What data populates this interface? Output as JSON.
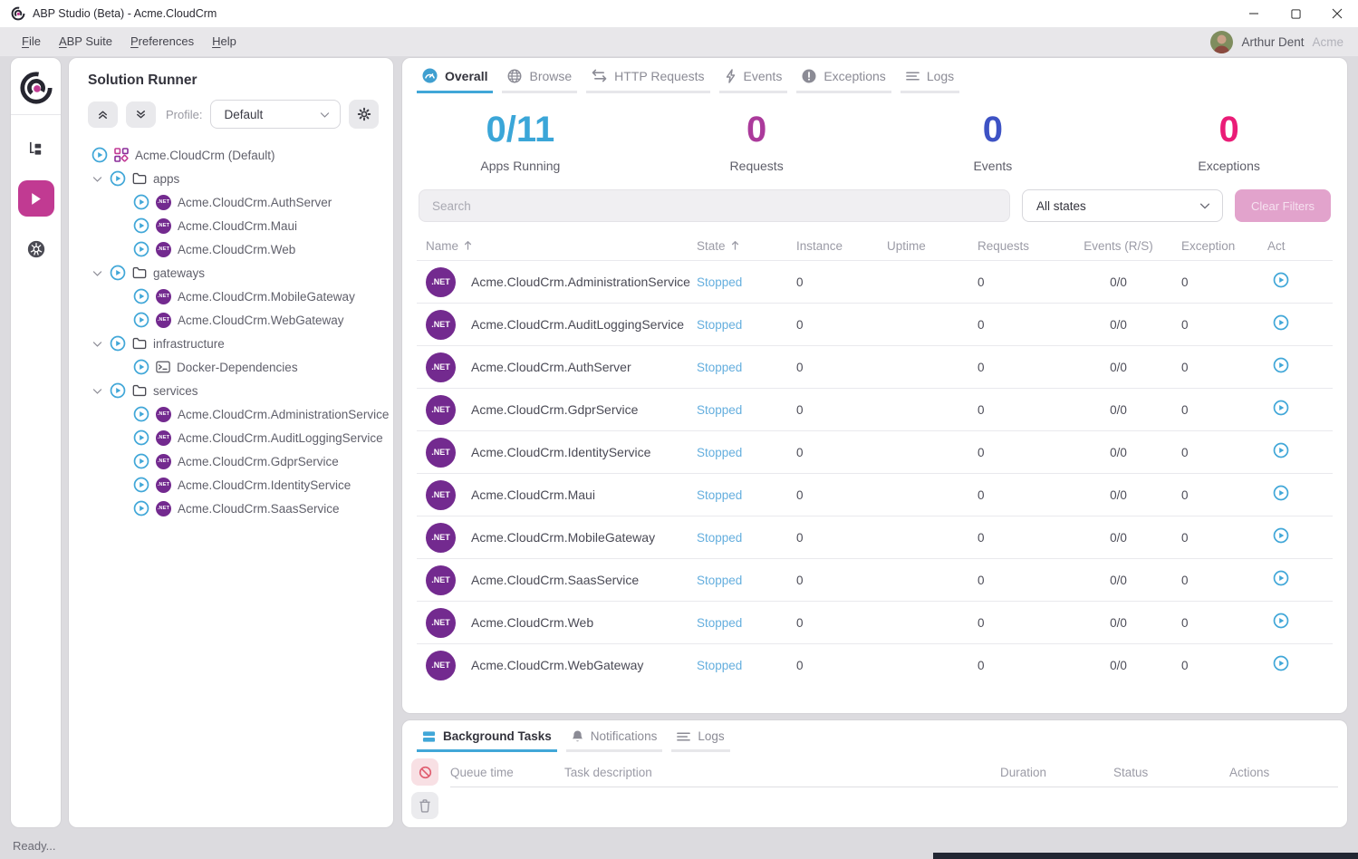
{
  "window": {
    "title": "ABP Studio (Beta) - Acme.CloudCrm"
  },
  "menu": {
    "items": [
      "File",
      "ABP Suite",
      "Preferences",
      "Help"
    ],
    "user_name": "Arthur Dent",
    "org_name": "Acme"
  },
  "rail": {
    "items": [
      {
        "icon": "solution-explorer-icon"
      },
      {
        "icon": "solution-runner-icon",
        "active": true
      },
      {
        "icon": "kubernetes-icon"
      }
    ]
  },
  "runner": {
    "title": "Solution Runner",
    "profile_label": "Profile:",
    "profile_value": "Default",
    "tree": [
      {
        "label": "Acme.CloudCrm (Default)",
        "icon": "grid",
        "level": 0
      },
      {
        "label": "apps",
        "icon": "folder",
        "level": 1
      },
      {
        "label": "Acme.CloudCrm.AuthServer",
        "icon": "dotnet",
        "level": 2
      },
      {
        "label": "Acme.CloudCrm.Maui",
        "icon": "dotnet",
        "level": 2
      },
      {
        "label": "Acme.CloudCrm.Web",
        "icon": "dotnet",
        "level": 2
      },
      {
        "label": "gateways",
        "icon": "folder",
        "level": 1
      },
      {
        "label": "Acme.CloudCrm.MobileGateway",
        "icon": "dotnet",
        "level": 2
      },
      {
        "label": "Acme.CloudCrm.WebGateway",
        "icon": "dotnet",
        "level": 2
      },
      {
        "label": "infrastructure",
        "icon": "folder",
        "level": 1
      },
      {
        "label": "Docker-Dependencies",
        "icon": "terminal",
        "level": 2
      },
      {
        "label": "services",
        "icon": "folder",
        "level": 1
      },
      {
        "label": "Acme.CloudCrm.AdministrationService",
        "icon": "dotnet",
        "level": 2
      },
      {
        "label": "Acme.CloudCrm.AuditLoggingService",
        "icon": "dotnet",
        "level": 2
      },
      {
        "label": "Acme.CloudCrm.GdprService",
        "icon": "dotnet",
        "level": 2
      },
      {
        "label": "Acme.CloudCrm.IdentityService",
        "icon": "dotnet",
        "level": 2
      },
      {
        "label": "Acme.CloudCrm.SaasService",
        "icon": "dotnet",
        "level": 2
      }
    ]
  },
  "main": {
    "tabs": [
      {
        "label": "Overall",
        "icon": "gauge",
        "active": true
      },
      {
        "label": "Browse",
        "icon": "globe",
        "active": false
      },
      {
        "label": "HTTP Requests",
        "icon": "swap",
        "active": false
      },
      {
        "label": "Events",
        "icon": "bolt",
        "active": false
      },
      {
        "label": "Exceptions",
        "icon": "exclaim",
        "active": false
      },
      {
        "label": "Logs",
        "icon": "lines",
        "active": false
      }
    ],
    "stats": [
      {
        "value": "0/11",
        "label": "Apps Running",
        "color": "#3ba6d8"
      },
      {
        "value": "0",
        "label": "Requests",
        "color": "#ab3a9b"
      },
      {
        "value": "0",
        "label": "Events",
        "color": "#3d52c4"
      },
      {
        "value": "0",
        "label": "Exceptions",
        "color": "#ea1c77"
      }
    ],
    "search_placeholder": "Search",
    "state_filter_value": "All states",
    "clear_filters_label": "Clear Filters",
    "table": {
      "headers": [
        {
          "label": "Name",
          "sorted": true
        },
        {
          "label": "State",
          "sorted": true
        },
        {
          "label": "Instance"
        },
        {
          "label": "Uptime"
        },
        {
          "label": "Requests"
        },
        {
          "label": "Events (R/S)"
        },
        {
          "label": "Exceptions"
        },
        {
          "label": "Act"
        }
      ],
      "rows": [
        {
          "name": "Acme.CloudCrm.AdministrationService",
          "state": "Stopped",
          "instance": "0",
          "uptime": "",
          "requests": "0",
          "events": "0/0",
          "exceptions": "0"
        },
        {
          "name": "Acme.CloudCrm.AuditLoggingService",
          "state": "Stopped",
          "instance": "0",
          "uptime": "",
          "requests": "0",
          "events": "0/0",
          "exceptions": "0"
        },
        {
          "name": "Acme.CloudCrm.AuthServer",
          "state": "Stopped",
          "instance": "0",
          "uptime": "",
          "requests": "0",
          "events": "0/0",
          "exceptions": "0"
        },
        {
          "name": "Acme.CloudCrm.GdprService",
          "state": "Stopped",
          "instance": "0",
          "uptime": "",
          "requests": "0",
          "events": "0/0",
          "exceptions": "0"
        },
        {
          "name": "Acme.CloudCrm.IdentityService",
          "state": "Stopped",
          "instance": "0",
          "uptime": "",
          "requests": "0",
          "events": "0/0",
          "exceptions": "0"
        },
        {
          "name": "Acme.CloudCrm.Maui",
          "state": "Stopped",
          "instance": "0",
          "uptime": "",
          "requests": "0",
          "events": "0/0",
          "exceptions": "0"
        },
        {
          "name": "Acme.CloudCrm.MobileGateway",
          "state": "Stopped",
          "instance": "0",
          "uptime": "",
          "requests": "0",
          "events": "0/0",
          "exceptions": "0"
        },
        {
          "name": "Acme.CloudCrm.SaasService",
          "state": "Stopped",
          "instance": "0",
          "uptime": "",
          "requests": "0",
          "events": "0/0",
          "exceptions": "0"
        },
        {
          "name": "Acme.CloudCrm.Web",
          "state": "Stopped",
          "instance": "0",
          "uptime": "",
          "requests": "0",
          "events": "0/0",
          "exceptions": "0"
        },
        {
          "name": "Acme.CloudCrm.WebGateway",
          "state": "Stopped",
          "instance": "0",
          "uptime": "",
          "requests": "0",
          "events": "0/0",
          "exceptions": "0"
        }
      ]
    }
  },
  "bottom": {
    "tabs": [
      {
        "label": "Background Tasks",
        "icon": "tasks",
        "active": true
      },
      {
        "label": "Notifications",
        "icon": "bell",
        "active": false
      },
      {
        "label": "Logs",
        "icon": "lines",
        "active": false
      }
    ],
    "headers": [
      "Queue time",
      "Task description",
      "Duration",
      "Status",
      "Actions"
    ]
  },
  "statusbar": {
    "text": "Ready..."
  },
  "colors": {
    "accent_pink": "#c13a92",
    "accent_blue": "#41a7d8",
    "dotnet_purple": "#732a8f",
    "stopped_state": "#64aede",
    "exceptions_pink": "#ea1c77"
  }
}
